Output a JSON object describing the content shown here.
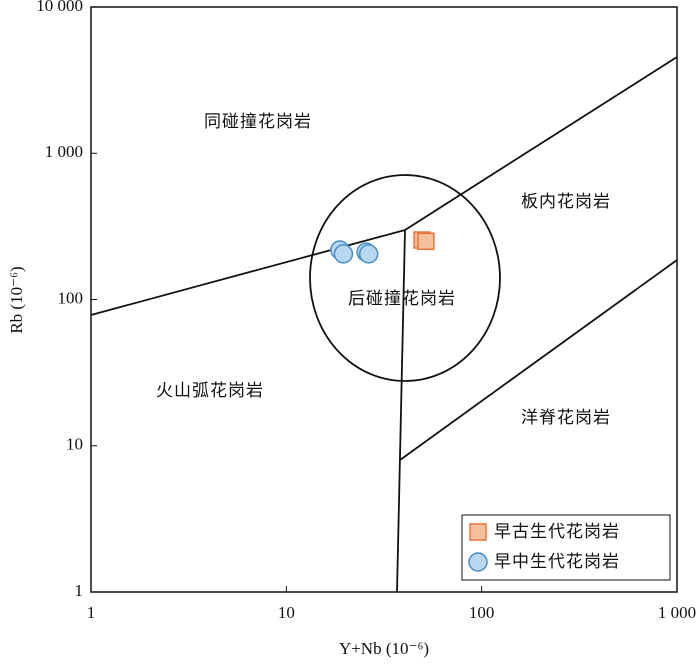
{
  "chart_data": {
    "type": "scatter",
    "x_label": "Y+Nb (10⁻⁶)",
    "y_label": "Rb (10⁻⁶)",
    "x_log": true,
    "y_log": true,
    "xlim": [
      1,
      1000
    ],
    "ylim": [
      1,
      10000
    ],
    "xticks": [
      1,
      10,
      100,
      {
        "value": 1000,
        "label": "1 000"
      }
    ],
    "yticks": [
      1,
      10,
      100,
      {
        "value": 1000,
        "label": "1 000"
      },
      {
        "value": 10000,
        "label": "10 000"
      }
    ],
    "annotations": [
      "同碰撞花岗岩",
      "板内花岗岩",
      "后碰撞花岗岩",
      "火山弧花岗岩",
      "洋脊花岗岩"
    ],
    "legend": "lower right",
    "series": [
      {
        "name": "早古生代花岗岩",
        "marker": "square",
        "color": "#f9c19b",
        "edge": "#e8743b",
        "x": [
          49.5,
          51.8
        ],
        "y": [
          255,
          250
        ]
      },
      {
        "name": "早中生代花岗岩",
        "marker": "circle",
        "color": "#b8d8f0",
        "edge": "#4a8cc8",
        "x": [
          18.8,
          19.6,
          25.6,
          26.4
        ],
        "y": [
          218,
          205,
          211,
          205
        ]
      }
    ]
  }
}
